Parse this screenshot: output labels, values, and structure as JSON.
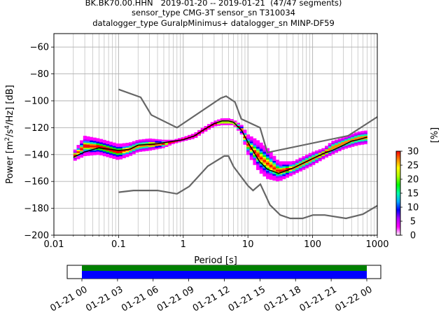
{
  "chart_data": {
    "type": "line",
    "title_lines": [
      "BK.BK70.00.HHN   2019-01-20 -- 2019-01-21  (47/47 segments)",
      "sensor_type CMG-3T sensor_sn T310034",
      "datalogger_type GuralpMinimus+ datalogger_sn MINP-DF59"
    ],
    "xlabel": "Period [s]",
    "ylabel_parts": [
      "Power [m",
      "2",
      "/s",
      "4",
      "/Hz] [dB]"
    ],
    "xscale": "log",
    "xlim": [
      0.01,
      1000
    ],
    "ylim": [
      -200,
      -50
    ],
    "xticks": [
      {
        "v": 0.01,
        "label": "0.01"
      },
      {
        "v": 0.1,
        "label": "0.1"
      },
      {
        "v": 1,
        "label": "1"
      },
      {
        "v": 10,
        "label": "10"
      },
      {
        "v": 100,
        "label": "100"
      },
      {
        "v": 1000,
        "label": "1000"
      }
    ],
    "yticks": [
      {
        "v": -60,
        "label": "−60"
      },
      {
        "v": -80,
        "label": "−80"
      },
      {
        "v": -100,
        "label": "−100"
      },
      {
        "v": -120,
        "label": "−120"
      },
      {
        "v": -140,
        "label": "−140"
      },
      {
        "v": -160,
        "label": "−160"
      },
      {
        "v": -180,
        "label": "−180"
      },
      {
        "v": -200,
        "label": "−200"
      }
    ],
    "grid": true,
    "series": [
      {
        "role": "high-noise-model",
        "color": "#666666",
        "x": [
          0.1,
          0.22,
          0.32,
          0.8,
          3.8,
          4.6,
          6.3,
          7.9,
          15.4,
          20,
          354.8,
          1000
        ],
        "y": [
          -91.5,
          -97.4,
          -110.5,
          -120,
          -98,
          -96.5,
          -101,
          -113.5,
          -120,
          -138.5,
          -126,
          -112
        ]
      },
      {
        "role": "low-noise-model",
        "color": "#666666",
        "x": [
          0.1,
          0.17,
          0.4,
          0.8,
          1.24,
          2.4,
          4.3,
          5.0,
          6.0,
          10,
          12,
          15.6,
          21.9,
          31.6,
          45,
          70,
          101,
          154,
          328,
          600,
          1000
        ],
        "y": [
          -168,
          -166.7,
          -166.7,
          -169.2,
          -163.7,
          -148.6,
          -141.1,
          -141.1,
          -149,
          -163.2,
          -166.7,
          -162.1,
          -177.5,
          -185,
          -187.5,
          -187.5,
          -185,
          -185,
          -187.5,
          -184.4,
          -178
        ]
      },
      {
        "role": "median-psd",
        "color": "#000000",
        "x": [
          0.02,
          0.03,
          0.05,
          0.1,
          0.15,
          0.2,
          0.4,
          0.7,
          1,
          1.5,
          2,
          3,
          4,
          5,
          6,
          8,
          10,
          15,
          20,
          30,
          50,
          100,
          150,
          200,
          300,
          400,
          500,
          700
        ],
        "y": [
          -142,
          -138,
          -135,
          -137,
          -136,
          -133,
          -132,
          -130,
          -129,
          -126,
          -122,
          -117,
          -115,
          -115,
          -116,
          -122,
          -131,
          -145,
          -151,
          -154,
          -150,
          -143,
          -139,
          -137,
          -133,
          -130,
          -129,
          -127
        ]
      }
    ],
    "pdf_band": {
      "x": [
        0.02,
        0.03,
        0.05,
        0.1,
        0.15,
        0.2,
        0.3,
        0.5,
        0.7,
        1,
        1.5,
        2,
        3,
        4,
        5,
        6,
        8,
        10,
        15,
        20,
        30,
        50,
        100,
        150,
        200,
        300,
        500,
        700
      ],
      "upper": [
        -138,
        -126,
        -128,
        -132,
        -131,
        -129,
        -128,
        -129,
        -129,
        -127,
        -124,
        -120,
        -115,
        -113,
        -113,
        -114,
        -118,
        -125,
        -130,
        -135,
        -145,
        -145,
        -138,
        -135,
        -130,
        -127,
        -123,
        -122
      ],
      "lower": [
        -145,
        -141,
        -140,
        -144,
        -141,
        -138,
        -137,
        -135,
        -132,
        -130,
        -128,
        -124,
        -119,
        -118,
        -118,
        -118,
        -125,
        -140,
        -153,
        -158,
        -160,
        -155,
        -148,
        -143,
        -140,
        -136,
        -133,
        -132
      ]
    },
    "colorbar": {
      "label": "[%]",
      "min": 0,
      "max": 30,
      "ticks": [
        {
          "v": 0,
          "label": "0"
        },
        {
          "v": 5,
          "label": "5"
        },
        {
          "v": 10,
          "label": "10"
        },
        {
          "v": 15,
          "label": "15"
        },
        {
          "v": 20,
          "label": "20"
        },
        {
          "v": 25,
          "label": "25"
        },
        {
          "v": 30,
          "label": "30"
        }
      ],
      "colors": [
        "#ffffff",
        "#ff00ff",
        "#aa00ff",
        "#0000ff",
        "#00aaff",
        "#00ffaa",
        "#00ff00",
        "#aaff00",
        "#ffff00",
        "#ff8800",
        "#ff0000"
      ]
    },
    "timeline": {
      "coverage_colors": {
        "data": "#0000ff",
        "gaps_marker": "#008000"
      },
      "tick_labels": [
        "01-21 00",
        "01-21 03",
        "01-21 06",
        "01-21 09",
        "01-21 12",
        "01-21 15",
        "01-21 18",
        "01-21 21",
        "01-22 00"
      ]
    }
  }
}
